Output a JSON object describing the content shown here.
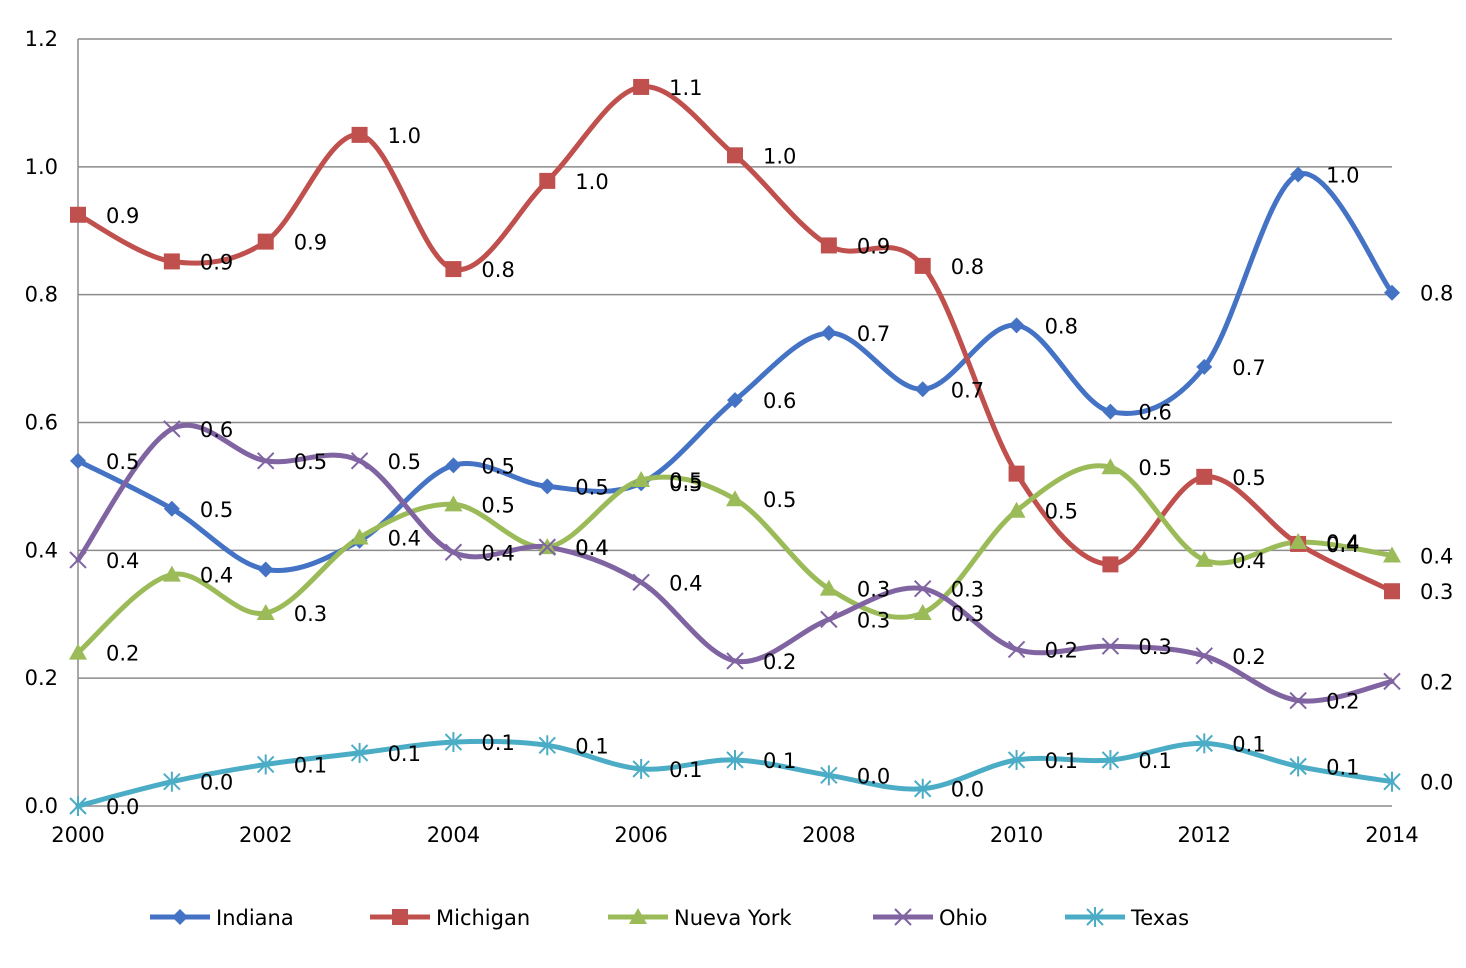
{
  "chart_data": {
    "type": "line",
    "title": "",
    "xlabel": "",
    "ylabel": "",
    "x": [
      2000,
      2001,
      2002,
      2003,
      2004,
      2005,
      2006,
      2007,
      2008,
      2009,
      2010,
      2011,
      2012,
      2013,
      2014
    ],
    "x_ticks": [
      "2000",
      "2002",
      "2004",
      "2006",
      "2008",
      "2010",
      "2012",
      "2014"
    ],
    "y_ticks": [
      "0.0",
      "0.2",
      "0.4",
      "0.6",
      "0.8",
      "1.0",
      "1.2"
    ],
    "ylim": [
      0,
      1.2
    ],
    "xlim": [
      2000,
      2014
    ],
    "grid": "horizontal",
    "legend_position": "bottom",
    "smooth": true,
    "series": [
      {
        "name": "Indiana",
        "color": "#4472C4",
        "marker": "diamond",
        "values": [
          0.54,
          0.465,
          0.37,
          0.415,
          0.533,
          0.5,
          0.505,
          0.635,
          0.74,
          0.652,
          0.752,
          0.617,
          0.687,
          0.988,
          0.803
        ],
        "labels": [
          "0.5",
          "0.5",
          "",
          "",
          "0.5",
          "0.5",
          "0.5",
          "0.6",
          "0.7",
          "0.7",
          "0.8",
          "0.6",
          "0.7",
          "1.0",
          "0.8"
        ]
      },
      {
        "name": "Michigan",
        "color": "#C0504D",
        "marker": "square",
        "values": [
          0.925,
          0.852,
          0.883,
          1.05,
          0.84,
          0.978,
          1.125,
          1.018,
          0.877,
          0.845,
          0.52,
          0.378,
          0.515,
          0.41,
          0.336
        ],
        "labels": [
          "0.9",
          "0.9",
          "0.9",
          "1.0",
          "0.8",
          "1.0",
          "1.1",
          "1.0",
          "0.9",
          "0.8",
          "",
          "",
          "0.5",
          "0.4",
          "0.3"
        ]
      },
      {
        "name": "Nueva York",
        "color": "#9BBB59",
        "marker": "triangle",
        "values": [
          0.24,
          0.362,
          0.302,
          0.42,
          0.472,
          0.405,
          0.51,
          0.48,
          0.34,
          0.302,
          0.462,
          0.53,
          0.385,
          0.413,
          0.392
        ],
        "labels": [
          "0.2",
          "0.4",
          "0.3",
          "0.4",
          "0.5",
          "0.4",
          "0.5",
          "0.5",
          "0.3",
          "0.3",
          "0.5",
          "0.5",
          "0.4",
          "0.4",
          "0.4"
        ]
      },
      {
        "name": "Ohio",
        "color": "#8064A2",
        "marker": "x",
        "values": [
          0.385,
          0.59,
          0.54,
          0.54,
          0.397,
          0.405,
          0.35,
          0.227,
          0.292,
          0.34,
          0.245,
          0.25,
          0.235,
          0.165,
          0.195
        ],
        "labels": [
          "0.4",
          "0.6",
          "0.5",
          "0.5",
          "0.4",
          "0.4",
          "0.4",
          "0.2",
          "0.3",
          "0.3",
          "0.2",
          "0.3",
          "0.2",
          "0.2",
          "0.2"
        ]
      },
      {
        "name": "Texas",
        "color": "#4BACC6",
        "marker": "star",
        "values": [
          0.0,
          0.038,
          0.065,
          0.083,
          0.1,
          0.095,
          0.058,
          0.072,
          0.048,
          0.027,
          0.072,
          0.072,
          0.098,
          0.062,
          0.038
        ],
        "labels": [
          "0.0",
          "0.0",
          "0.1",
          "0.1",
          "0.1",
          "0.1",
          "0.1",
          "0.1",
          "0.0",
          "0.0",
          "0.1",
          "0.1",
          "0.1",
          "0.1",
          "0.0"
        ]
      }
    ]
  }
}
